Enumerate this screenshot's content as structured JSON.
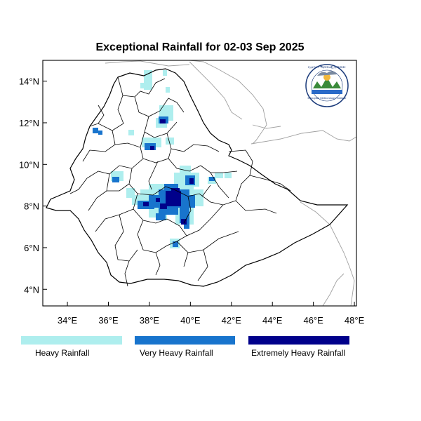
{
  "title": "Exceptional Rainfall for 02-03 Sep 2025",
  "x_ticks": [
    {
      "value": 34,
      "label": "34°E"
    },
    {
      "value": 36,
      "label": "36°E"
    },
    {
      "value": 38,
      "label": "38°E"
    },
    {
      "value": 40,
      "label": "40°E"
    },
    {
      "value": 42,
      "label": "42°E"
    },
    {
      "value": 44,
      "label": "44°E"
    },
    {
      "value": 46,
      "label": "46°E"
    },
    {
      "value": 48,
      "label": "48°E"
    }
  ],
  "y_ticks": [
    {
      "value": 4,
      "label": "4°N"
    },
    {
      "value": 6,
      "label": "6°N"
    },
    {
      "value": 8,
      "label": "8°N"
    },
    {
      "value": 10,
      "label": "10°N"
    },
    {
      "value": 12,
      "label": "12°N"
    },
    {
      "value": 14,
      "label": "14°N"
    }
  ],
  "lon_range": [
    32.8,
    48.1
  ],
  "lat_range": [
    3.2,
    15.0
  ],
  "legend": [
    {
      "label": "Heavy Rainfall",
      "color": "#aeeeee"
    },
    {
      "label": "Very Heavy Rainfall",
      "color": "#1874cd"
    },
    {
      "label": "Extremely Heavy Rainfall",
      "color": "#00008b"
    }
  ],
  "logo": {
    "name": "ethiopian-meteorology-institute-logo",
    "top_text": "የኢትዮጵያ ሚቲዎሮሎጂ ኢንስቲትዩት",
    "bottom_text": "Ethiopian Meteorology Institute"
  },
  "colors": {
    "country_border": "#000000",
    "neighbor_border": "#a0a0a0"
  }
}
